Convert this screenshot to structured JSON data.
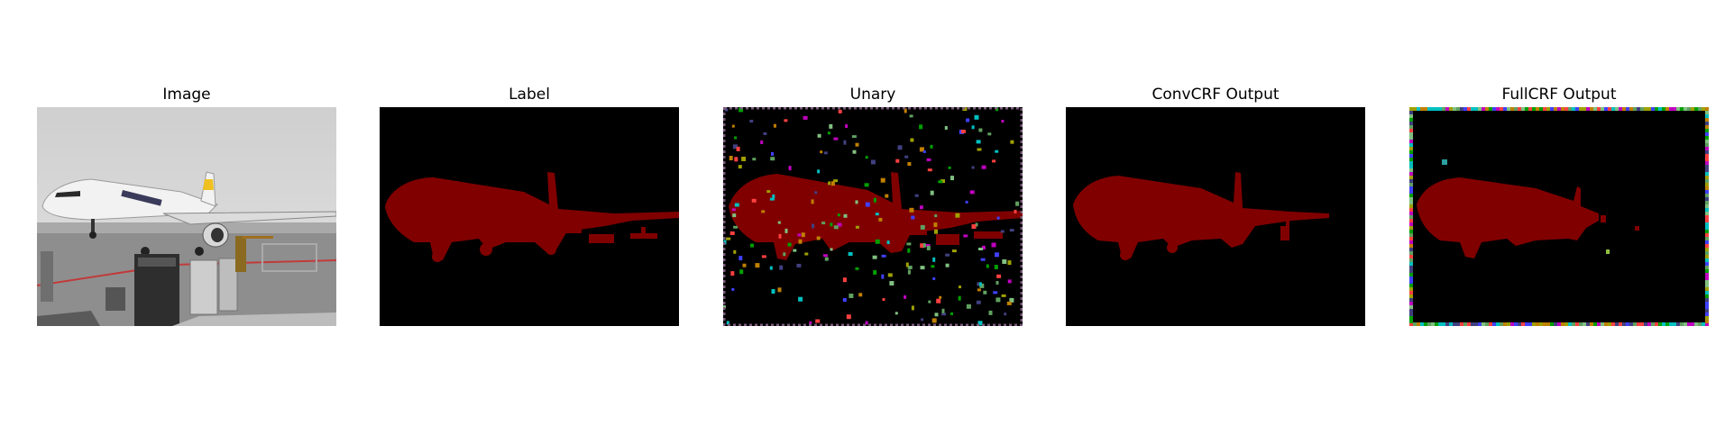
{
  "figure": {
    "panels": [
      {
        "title": "Image"
      },
      {
        "title": "Label"
      },
      {
        "title": "Unary"
      },
      {
        "title": "ConvCRF Output"
      },
      {
        "title": "FullCRF Output"
      }
    ]
  },
  "colors": {
    "background": "#000000",
    "airplane_class": "#800000",
    "noise_palette": [
      "#00a000",
      "#a0a000",
      "#404080",
      "#c000c0",
      "#00c0c0",
      "#c08000",
      "#4040ff",
      "#80c080",
      "#ff4040",
      "#60a060"
    ]
  }
}
